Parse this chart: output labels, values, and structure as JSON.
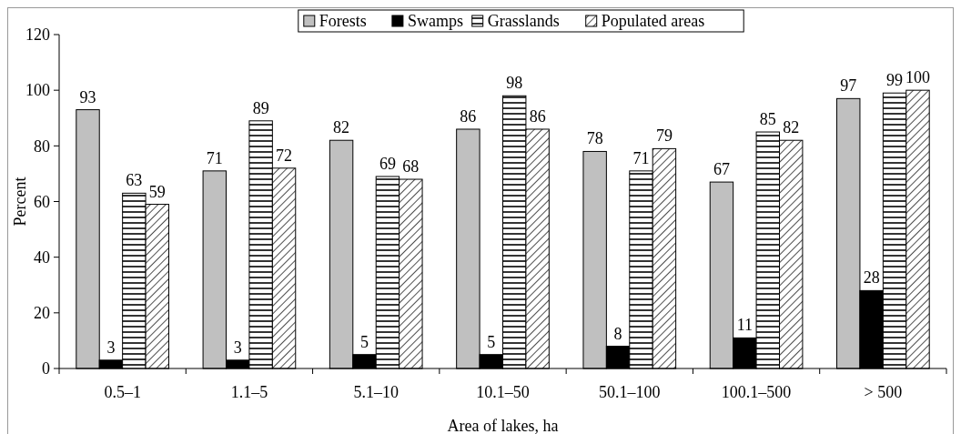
{
  "chart_data": {
    "type": "bar",
    "xlabel": "Area of lakes, ha",
    "ylabel": "Percent",
    "categories": [
      "0.5–1",
      "1.1–5",
      "5.1–10",
      "10.1–50",
      "50.1–100",
      "100.1–500",
      "> 500"
    ],
    "series": [
      {
        "name": "Forests",
        "color": "#c0c0c0",
        "values": [
          93,
          71,
          82,
          86,
          78,
          67,
          97
        ]
      },
      {
        "name": "Swamps",
        "color": "#000000",
        "values": [
          3,
          3,
          5,
          5,
          8,
          11,
          28
        ]
      },
      {
        "name": "Grasslands",
        "color": "#000000",
        "values": [
          63,
          89,
          69,
          98,
          71,
          85,
          99
        ]
      },
      {
        "name": "Populated areas",
        "color": "#000000",
        "values": [
          59,
          72,
          68,
          86,
          79,
          82,
          100
        ]
      }
    ],
    "ylim": [
      0,
      120
    ],
    "yticks": [
      0,
      20,
      40,
      60,
      80,
      100,
      120
    ],
    "data_labels": true,
    "legend": "top",
    "grid": false
  }
}
